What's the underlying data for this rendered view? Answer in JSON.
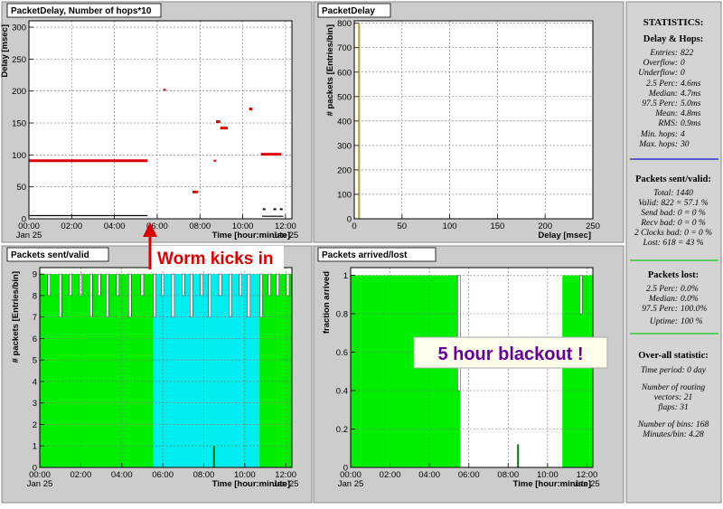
{
  "annotations": {
    "worm": "Worm kicks in",
    "blackout": "5 hour blackout !"
  },
  "colors": {
    "panel_bg": "#cccccc",
    "plot_bg": "#ffffff",
    "delay_red": "#dd0000",
    "green": "#00ee00",
    "cyan": "#00eeee",
    "dark_green": "#007700",
    "annotation_red": "#dd0000",
    "annotation_purple": "#660099",
    "blue_line": "#3333cc",
    "green_line": "#33cc33"
  },
  "stats": {
    "title": "STATISTICS:",
    "delay_section": {
      "heading": "Delay & Hops:",
      "lines": [
        {
          "label": "Entries:",
          "value": "822"
        },
        {
          "label": "Overflow:",
          "value": "0"
        },
        {
          "label": "Underflow:",
          "value": "0"
        },
        {
          "label": "2.5 Perc:",
          "value": "4.6ms"
        },
        {
          "label": "Median:",
          "value": "4.7ms"
        },
        {
          "label": "97.5 Perc:",
          "value": "5.0ms"
        },
        {
          "label": "Mean:",
          "value": "4.8ms"
        },
        {
          "label": "RMS:",
          "value": "0.9ms"
        },
        {
          "label": "Min. hops:",
          "value": "4"
        },
        {
          "label": "Max. hops:",
          "value": "30"
        }
      ]
    },
    "packets_section": {
      "heading": "Packets sent/valid:",
      "lines": [
        "Total: 1440",
        "Valid: 822 = 57.1 %",
        "Send bad: 0 = 0 %",
        "Recv bad: 0 = 0 %",
        "2 Clocks bad: 0 = 0 %",
        "Lost: 618 = 43 %"
      ]
    },
    "lost_section": {
      "heading": "Packets lost:",
      "lines": [
        {
          "label": "2.5 Perc:",
          "value": "0.0%"
        },
        {
          "label": "Median:",
          "value": "0.0%"
        },
        {
          "label": "97.5 Perc:",
          "value": "100.0%"
        },
        {
          "label": "Uptime:",
          "value": "100 %"
        }
      ]
    },
    "overall_section": {
      "heading": "Over-all statistic:",
      "lines": [
        "Time period: 0 day",
        "Number of routing",
        "vectors: 21",
        "flaps: 31",
        "Number of bins: 168",
        "Minutes/bin: 4.28"
      ]
    }
  },
  "chart_data": [
    {
      "id": "delay",
      "type": "scatter",
      "title": "PacketDelay, Number of hops*10",
      "xlabel": "Time [hour:minute]",
      "ylabel": "Delay [msec]",
      "xlim": [
        0,
        12.3
      ],
      "ylim": [
        0,
        310
      ],
      "x_ticks": [
        {
          "value": 0,
          "label": "00:00",
          "sub": "Jan 25"
        },
        {
          "value": 2,
          "label": "02:00"
        },
        {
          "value": 4,
          "label": "04:00"
        },
        {
          "value": 6,
          "label": "06:00"
        },
        {
          "value": 8,
          "label": "08:00"
        },
        {
          "value": 10,
          "label": "10:00"
        },
        {
          "value": 12,
          "label": "12:00",
          "sub": "Jan 25"
        }
      ],
      "y_ticks": [
        0,
        50,
        100,
        150,
        200,
        250,
        300
      ],
      "grid": true,
      "series": [
        {
          "color": "#dd0000",
          "segments": [
            [
              0,
              5.55,
              91
            ],
            [
              7.65,
              7.9,
              42
            ],
            [
              8.75,
              8.95,
              152
            ],
            [
              8.95,
              9.3,
              142
            ],
            [
              10.3,
              10.45,
              172
            ],
            [
              10.85,
              11.3,
              101
            ],
            [
              11.3,
              11.8,
              101
            ]
          ],
          "points": [
            [
              6.35,
              202
            ],
            [
              8.7,
              91
            ]
          ]
        },
        {
          "color": "#000000",
          "segments": [
            [
              0,
              5.55,
              5
            ],
            [
              10.9,
              11.9,
              4
            ]
          ],
          "points": [
            [
              11.0,
              15
            ],
            [
              11.5,
              15
            ],
            [
              11.8,
              15
            ]
          ]
        }
      ]
    },
    {
      "id": "histogram",
      "type": "bar",
      "title": "PacketDelay",
      "xlabel": "Delay [msec]",
      "ylabel": "# packets [Entries/bin]",
      "xlim": [
        0,
        250
      ],
      "ylim": [
        0,
        810
      ],
      "x_ticks": [
        0,
        50,
        100,
        150,
        200,
        250
      ],
      "y_ticks": [
        0,
        100,
        200,
        300,
        400,
        500,
        600,
        700,
        800
      ],
      "grid": true,
      "bars": [
        {
          "x0": 4,
          "x1": 6,
          "value": 800
        }
      ]
    },
    {
      "id": "sent",
      "type": "area",
      "title": "Packets sent/valid",
      "xlabel": "Time [hour:minute]",
      "ylabel": "# packets [Entries/bin]",
      "xlim": [
        0,
        12.3
      ],
      "ylim": [
        0,
        9.3
      ],
      "x_ticks": [
        {
          "value": 0,
          "label": "00:00",
          "sub": "Jan 25"
        },
        {
          "value": 2,
          "label": "02:00"
        },
        {
          "value": 4,
          "label": "04:00"
        },
        {
          "value": 6,
          "label": "06:00"
        },
        {
          "value": 8,
          "label": "08:00"
        },
        {
          "value": 10,
          "label": "10:00"
        },
        {
          "value": 12,
          "label": "12:00",
          "sub": "Jan 25"
        }
      ],
      "y_ticks": [
        0,
        1,
        2,
        3,
        4,
        5,
        6,
        7,
        8,
        9
      ],
      "grid": true,
      "blocks": [
        {
          "color": "#00ee00",
          "x0": 0,
          "x1": 5.55,
          "value": 9
        },
        {
          "color": "#00eeee",
          "x0": 5.55,
          "x1": 10.7,
          "value": 9
        },
        {
          "color": "#00ee00",
          "x0": 10.7,
          "x1": 12.3,
          "value": 9
        }
      ],
      "dips": [
        {
          "x": 0.45,
          "value": 8
        },
        {
          "x": 1.0,
          "value": 7
        },
        {
          "x": 1.5,
          "value": 8
        },
        {
          "x": 2.0,
          "value": 8
        },
        {
          "x": 2.5,
          "value": 7
        },
        {
          "x": 2.9,
          "value": 8
        },
        {
          "x": 3.3,
          "value": 7
        },
        {
          "x": 3.8,
          "value": 8
        },
        {
          "x": 4.4,
          "value": 7
        },
        {
          "x": 5.0,
          "value": 8
        },
        {
          "x": 5.6,
          "value": 7
        },
        {
          "x": 6.0,
          "value": 8
        },
        {
          "x": 6.5,
          "value": 7
        },
        {
          "x": 7.0,
          "value": 8
        },
        {
          "x": 7.4,
          "value": 7
        },
        {
          "x": 7.9,
          "value": 8
        },
        {
          "x": 8.3,
          "value": 7
        },
        {
          "x": 8.8,
          "value": 8
        },
        {
          "x": 9.3,
          "value": 7
        },
        {
          "x": 9.8,
          "value": 8
        },
        {
          "x": 10.2,
          "value": 7
        },
        {
          "x": 10.8,
          "value": 7
        },
        {
          "x": 11.2,
          "value": 8
        },
        {
          "x": 11.6,
          "value": 8
        },
        {
          "x": 12.1,
          "value": 8
        }
      ],
      "spike": {
        "x": 8.5,
        "value": 1.0,
        "color": "#007700"
      }
    },
    {
      "id": "arrived",
      "type": "area",
      "title": "Packets arrived/lost",
      "xlabel": "Time [hour:minute]",
      "ylabel": "fraction arrived",
      "xlim": [
        0,
        12.3
      ],
      "ylim": [
        0,
        1.04
      ],
      "x_ticks": [
        {
          "value": 0,
          "label": "00:00",
          "sub": "Jan 25"
        },
        {
          "value": 2,
          "label": "02:00"
        },
        {
          "value": 4,
          "label": "04:00"
        },
        {
          "value": 6,
          "label": "06:00"
        },
        {
          "value": 8,
          "label": "08:00"
        },
        {
          "value": 10,
          "label": "10:00"
        },
        {
          "value": 12,
          "label": "12:00",
          "sub": "Jan 25"
        }
      ],
      "y_ticks": [
        {
          "value": 0,
          "label": "0"
        },
        {
          "value": 0.2,
          "label": "0.2"
        },
        {
          "value": 0.4,
          "label": "0.4"
        },
        {
          "value": 0.6,
          "label": "0.6"
        },
        {
          "value": 0.8,
          "label": "0.8"
        },
        {
          "value": 1.0,
          "label": "1"
        }
      ],
      "grid": true,
      "blocks": [
        {
          "color": "#00ee00",
          "x0": 0,
          "x1": 5.55,
          "value": 1.0
        },
        {
          "color": "#00ee00",
          "x0": 10.75,
          "x1": 12.3,
          "value": 1.0
        }
      ],
      "dips": [
        {
          "x": 5.5,
          "value": 0.4
        },
        {
          "x": 11.7,
          "value": 0.8
        }
      ],
      "spike": {
        "x": 8.5,
        "value": 0.12,
        "color": "#007700"
      }
    }
  ]
}
